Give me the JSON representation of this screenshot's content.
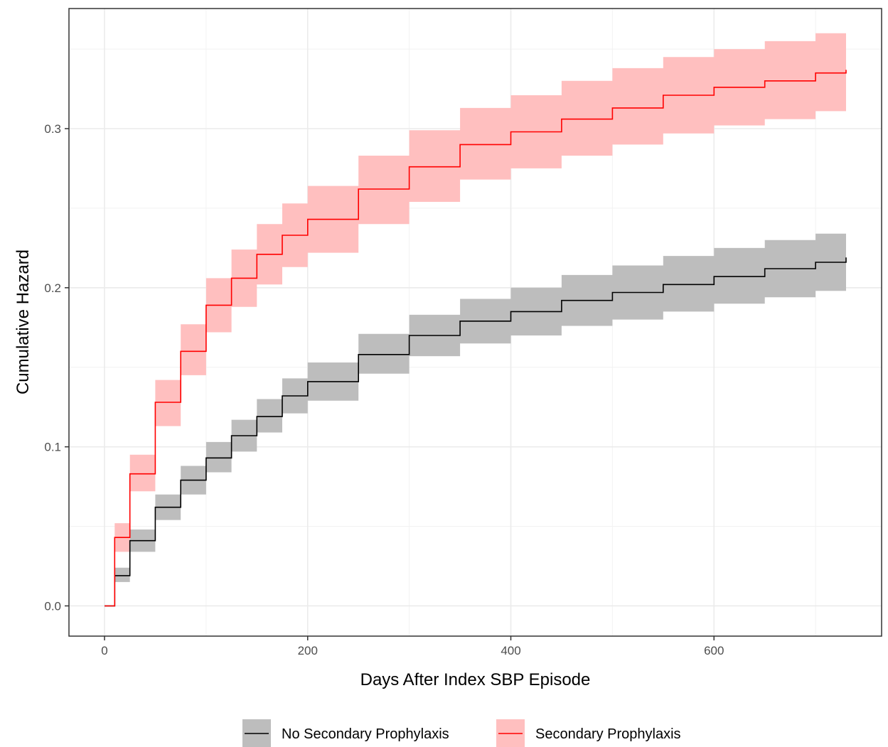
{
  "chart_data": {
    "type": "line",
    "title": "",
    "xlabel": "Days After Index SBP Episode",
    "ylabel": "Cumulative Hazard",
    "xlim": [
      -35,
      765
    ],
    "ylim": [
      -0.019,
      0.3755
    ],
    "x_ticks": [
      0,
      200,
      400,
      600
    ],
    "x_tick_labels": [
      "0",
      "200",
      "400",
      "600"
    ],
    "y_ticks": [
      0.0,
      0.1,
      0.2,
      0.3
    ],
    "y_tick_labels": [
      "0.0",
      "0.1",
      "0.2",
      "0.3"
    ],
    "x_minor_ticks": [
      100,
      300,
      500,
      700
    ],
    "y_minor_ticks": [
      0.05,
      0.15,
      0.25,
      0.35
    ],
    "grid": true,
    "step": true,
    "legend_position": "bottom",
    "series": [
      {
        "name": "No Secondary Prophylaxis",
        "color": "#000000",
        "fill": "#bdbdbd",
        "x": [
          0,
          10,
          25,
          50,
          75,
          100,
          125,
          150,
          175,
          200,
          250,
          300,
          350,
          400,
          450,
          500,
          550,
          600,
          650,
          700,
          730
        ],
        "y": [
          0.0,
          0.019,
          0.041,
          0.062,
          0.079,
          0.093,
          0.107,
          0.119,
          0.132,
          0.141,
          0.158,
          0.17,
          0.179,
          0.185,
          0.192,
          0.197,
          0.202,
          0.207,
          0.212,
          0.216,
          0.219
        ],
        "lower": [
          0.0,
          0.015,
          0.034,
          0.054,
          0.07,
          0.084,
          0.097,
          0.109,
          0.121,
          0.129,
          0.146,
          0.157,
          0.165,
          0.17,
          0.176,
          0.18,
          0.185,
          0.19,
          0.194,
          0.198,
          0.201
        ],
        "upper": [
          0.0,
          0.024,
          0.048,
          0.07,
          0.088,
          0.103,
          0.117,
          0.13,
          0.143,
          0.153,
          0.171,
          0.183,
          0.193,
          0.2,
          0.208,
          0.214,
          0.22,
          0.225,
          0.23,
          0.234,
          0.238
        ]
      },
      {
        "name": "Secondary Prophylaxis",
        "color": "#ff0000",
        "fill": "#ffbfbf",
        "x": [
          0,
          10,
          25,
          50,
          75,
          100,
          125,
          150,
          175,
          200,
          250,
          300,
          350,
          400,
          450,
          500,
          550,
          600,
          650,
          700,
          730
        ],
        "y": [
          0.0,
          0.043,
          0.083,
          0.128,
          0.16,
          0.189,
          0.206,
          0.221,
          0.233,
          0.243,
          0.262,
          0.276,
          0.29,
          0.298,
          0.306,
          0.313,
          0.321,
          0.326,
          0.33,
          0.335,
          0.337
        ],
        "lower": [
          0.0,
          0.034,
          0.072,
          0.113,
          0.145,
          0.172,
          0.188,
          0.202,
          0.213,
          0.222,
          0.24,
          0.254,
          0.268,
          0.275,
          0.283,
          0.29,
          0.297,
          0.302,
          0.306,
          0.311,
          0.313
        ],
        "upper": [
          0.0,
          0.052,
          0.095,
          0.142,
          0.177,
          0.206,
          0.224,
          0.24,
          0.253,
          0.264,
          0.283,
          0.299,
          0.313,
          0.321,
          0.33,
          0.338,
          0.345,
          0.35,
          0.355,
          0.36,
          0.362
        ]
      }
    ]
  }
}
